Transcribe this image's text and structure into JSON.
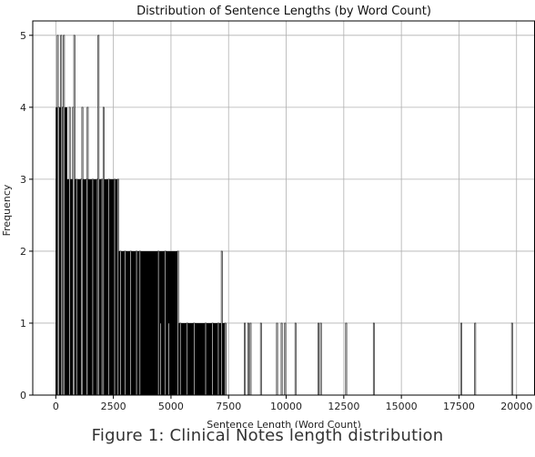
{
  "chart_data": {
    "type": "histogram",
    "title": "Distribution of Sentence Lengths (by Word Count)",
    "xlabel": "Sentence Length (Word Count)",
    "ylabel": "Frequency",
    "xlim": [
      -1000,
      20800
    ],
    "ylim": [
      0,
      5.2
    ],
    "x_ticks": [
      0,
      2500,
      5000,
      7500,
      10000,
      12500,
      15000,
      17500,
      20000
    ],
    "y_ticks": [
      0,
      1,
      2,
      3,
      4,
      5
    ],
    "grid": true,
    "bar_color": "#000000",
    "dense_region": {
      "counts_by_x_range": [
        {
          "x_from": 0,
          "x_to": 7400,
          "count": 1
        },
        {
          "x_from": 0,
          "x_to": 5300,
          "count": 2
        },
        {
          "x_from": 0,
          "x_to": 2700,
          "count": 3
        },
        {
          "x_from": 0,
          "x_to": 500,
          "count": 4
        }
      ]
    },
    "bars": [
      {
        "x": 80,
        "count": 5
      },
      {
        "x": 230,
        "count": 5
      },
      {
        "x": 350,
        "count": 5
      },
      {
        "x": 800,
        "count": 5
      },
      {
        "x": 1850,
        "count": 5
      },
      {
        "x": 120,
        "count": 4
      },
      {
        "x": 300,
        "count": 4
      },
      {
        "x": 600,
        "count": 4
      },
      {
        "x": 750,
        "count": 4
      },
      {
        "x": 1150,
        "count": 4
      },
      {
        "x": 1380,
        "count": 4
      },
      {
        "x": 2070,
        "count": 4
      },
      {
        "x": 900,
        "count": 3
      },
      {
        "x": 1100,
        "count": 3
      },
      {
        "x": 1350,
        "count": 3
      },
      {
        "x": 1600,
        "count": 3
      },
      {
        "x": 1800,
        "count": 3
      },
      {
        "x": 2000,
        "count": 3
      },
      {
        "x": 2300,
        "count": 3
      },
      {
        "x": 2550,
        "count": 3
      },
      {
        "x": 2700,
        "count": 3
      },
      {
        "x": 2800,
        "count": 2
      },
      {
        "x": 3000,
        "count": 2
      },
      {
        "x": 3250,
        "count": 2
      },
      {
        "x": 3500,
        "count": 2
      },
      {
        "x": 3650,
        "count": 2
      },
      {
        "x": 4450,
        "count": 2
      },
      {
        "x": 4750,
        "count": 2
      },
      {
        "x": 5300,
        "count": 2
      },
      {
        "x": 7200,
        "count": 2
      },
      {
        "x": 4550,
        "count": 1
      },
      {
        "x": 4900,
        "count": 1
      },
      {
        "x": 5400,
        "count": 1
      },
      {
        "x": 5700,
        "count": 1
      },
      {
        "x": 6000,
        "count": 1
      },
      {
        "x": 6500,
        "count": 1
      },
      {
        "x": 6800,
        "count": 1
      },
      {
        "x": 7050,
        "count": 1
      },
      {
        "x": 7350,
        "count": 1
      },
      {
        "x": 8200,
        "count": 1
      },
      {
        "x": 8350,
        "count": 1
      },
      {
        "x": 8450,
        "count": 1
      },
      {
        "x": 8900,
        "count": 1
      },
      {
        "x": 9600,
        "count": 1
      },
      {
        "x": 9800,
        "count": 1
      },
      {
        "x": 9950,
        "count": 1
      },
      {
        "x": 10400,
        "count": 1
      },
      {
        "x": 11400,
        "count": 1
      },
      {
        "x": 11500,
        "count": 1
      },
      {
        "x": 12600,
        "count": 1
      },
      {
        "x": 13800,
        "count": 1
      },
      {
        "x": 17600,
        "count": 1
      },
      {
        "x": 18200,
        "count": 1
      },
      {
        "x": 19800,
        "count": 1
      }
    ]
  },
  "caption": "Figure 1: Clinical Notes length distribution"
}
